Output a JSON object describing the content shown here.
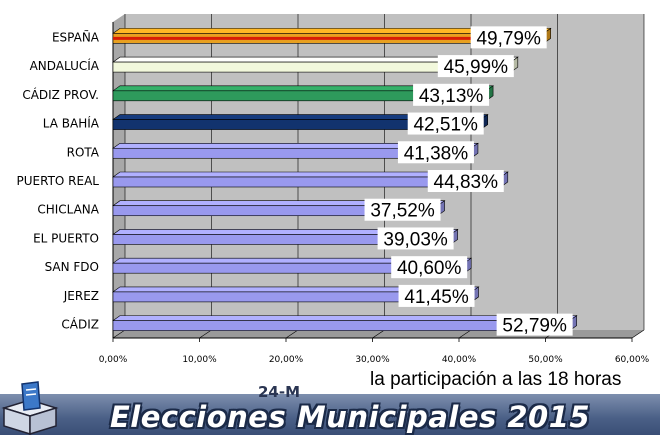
{
  "chart_data": {
    "type": "bar",
    "orientation": "horizontal",
    "categories": [
      "ESPAÑA",
      "ANDALUCÍA",
      "CÁDIZ PROV.",
      "LA BAHÍA",
      "ROTA",
      "PUERTO REAL",
      "CHICLANA",
      "EL PUERTO",
      "SAN FDO",
      "JEREZ",
      "CÁDIZ"
    ],
    "values": [
      49.79,
      45.99,
      43.13,
      42.51,
      41.38,
      44.83,
      37.52,
      39.03,
      40.6,
      41.45,
      52.79
    ],
    "value_labels": [
      "49,79%",
      "45,99%",
      "43,13%",
      "42,51%",
      "41,38%",
      "44,83%",
      "37,52%",
      "39,03%",
      "40,60%",
      "41,45%",
      "52,79%"
    ],
    "bar_colors": [
      "#e8a020",
      "#f2f8dc",
      "#2e9a5c",
      "#12336e",
      "#9999ee",
      "#9999ee",
      "#9999ee",
      "#9999ee",
      "#9999ee",
      "#9999ee",
      "#9999ee"
    ],
    "xlim": [
      0,
      60
    ],
    "xticks": [
      0,
      10,
      20,
      30,
      40,
      50,
      60
    ],
    "xtick_labels": [
      "0,00%",
      "10,00%",
      "20,00%",
      "30,00%",
      "40,00%",
      "50,00%",
      "60,00%"
    ],
    "grid": true,
    "title": "",
    "xlabel": "",
    "ylabel": ""
  },
  "subtitle": "la participación a las 18 horas",
  "banner": {
    "title": "Elecciones Municipales 2015",
    "tag": "24-M"
  },
  "colors": {
    "plot_wall": "#c0c0c0",
    "default_bar": "#9999ee"
  }
}
